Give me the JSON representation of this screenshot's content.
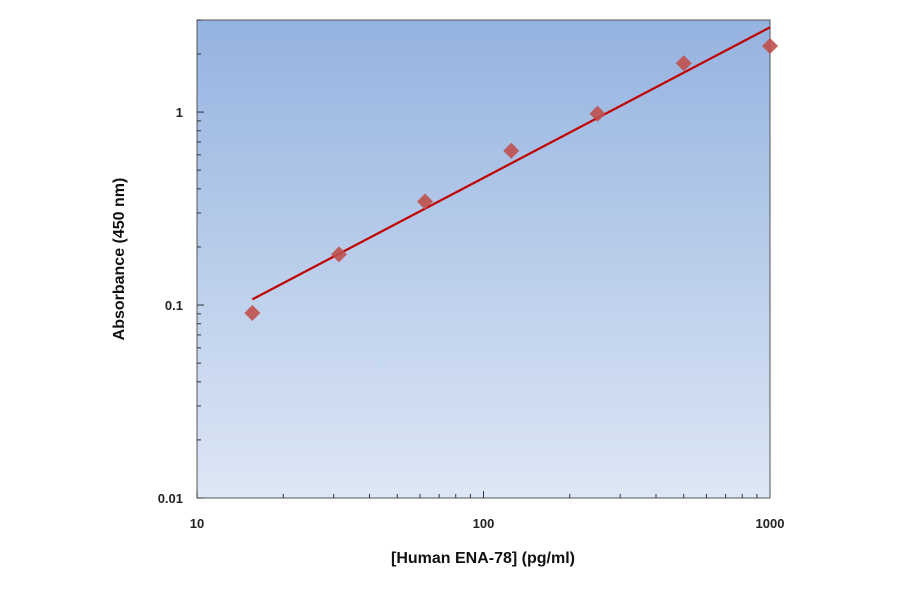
{
  "chart_data": {
    "type": "scatter",
    "title": "",
    "xlabel": "[Human ENA-78] (pg/ml)",
    "ylabel": "Absorbance (450 nm)",
    "x_scale": "log",
    "y_scale": "log",
    "xlim": [
      10,
      1000
    ],
    "ylim": [
      0.01,
      3
    ],
    "x_ticks": [
      10,
      100,
      1000
    ],
    "x_tick_labels": [
      "10",
      "100",
      "1000"
    ],
    "y_ticks": [
      0.01,
      0.1,
      1
    ],
    "y_tick_labels": [
      "0.01",
      "0.1",
      "1"
    ],
    "grid": false,
    "series": [
      {
        "type": "scatter",
        "marker": "diamond",
        "color": "#c0504d",
        "x": [
          15.6,
          31.3,
          62.5,
          125,
          250,
          500,
          1000
        ],
        "y": [
          0.091,
          0.183,
          0.344,
          0.63,
          0.98,
          1.79,
          2.2
        ]
      },
      {
        "type": "line",
        "fit": "power",
        "color": "#c00000",
        "x": [
          15.6,
          1000
        ],
        "y": [
          0.107,
          2.75
        ]
      }
    ],
    "background_gradient": [
      "#95b3e0",
      "#dde7f5"
    ]
  }
}
